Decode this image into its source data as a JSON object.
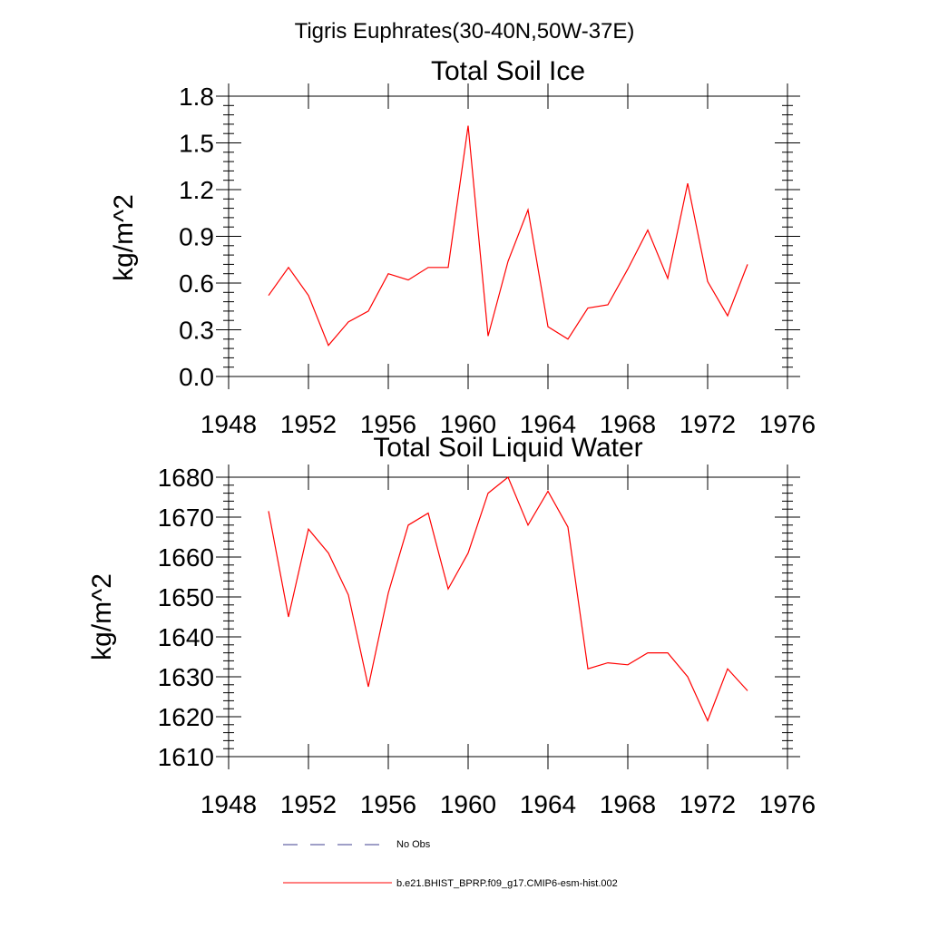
{
  "figure_title": "Tigris Euphrates(30-40N,50W-37E)",
  "colors": {
    "model": "#ff0000",
    "obs": "#3f3f8f",
    "axis": "#000000"
  },
  "legend": {
    "obs_label": "No Obs",
    "model_label": "b.e21.BHIST_BPRP.f09_g17.CMIP6-esm-hist.002"
  },
  "chart_data": [
    {
      "type": "line",
      "title": "Total Soil Ice",
      "xlabel": "",
      "ylabel": "kg/m^2",
      "xlim": [
        1948,
        1976
      ],
      "ylim": [
        0.0,
        1.8
      ],
      "x_ticks": [
        1948,
        1952,
        1956,
        1960,
        1964,
        1968,
        1972,
        1976
      ],
      "y_ticks": [
        "0.0",
        "0.3",
        "0.6",
        "0.9",
        "1.2",
        "1.5",
        "1.8"
      ],
      "grid": false,
      "x": [
        1950,
        1951,
        1952,
        1953,
        1954,
        1955,
        1956,
        1957,
        1958,
        1959,
        1960,
        1961,
        1962,
        1963,
        1964,
        1965,
        1966,
        1967,
        1968,
        1969,
        1970,
        1971,
        1972,
        1973,
        1974
      ],
      "series": [
        {
          "name": "b.e21.BHIST_BPRP.f09_g17.CMIP6-esm-hist.002",
          "values": [
            0.52,
            0.7,
            0.52,
            0.2,
            0.35,
            0.42,
            0.66,
            0.62,
            0.7,
            0.7,
            1.61,
            0.26,
            0.74,
            1.07,
            0.32,
            0.24,
            0.44,
            0.46,
            0.69,
            0.94,
            0.63,
            1.24,
            0.61,
            0.39,
            0.72
          ]
        }
      ]
    },
    {
      "type": "line",
      "title": "Total Soil Liquid Water",
      "xlabel": "",
      "ylabel": "kg/m^2",
      "xlim": [
        1948,
        1976
      ],
      "ylim": [
        1610,
        1680
      ],
      "x_ticks": [
        1948,
        1952,
        1956,
        1960,
        1964,
        1968,
        1972,
        1976
      ],
      "y_ticks": [
        "1610",
        "1620",
        "1630",
        "1640",
        "1650",
        "1660",
        "1670",
        "1680"
      ],
      "grid": false,
      "x": [
        1950,
        1951,
        1952,
        1953,
        1954,
        1955,
        1956,
        1957,
        1958,
        1959,
        1960,
        1961,
        1962,
        1963,
        1964,
        1965,
        1966,
        1967,
        1968,
        1969,
        1970,
        1971,
        1972,
        1973,
        1974
      ],
      "series": [
        {
          "name": "b.e21.BHIST_BPRP.f09_g17.CMIP6-esm-hist.002",
          "values": [
            1671.5,
            1645,
            1667,
            1661,
            1650.5,
            1627.5,
            1651,
            1668,
            1671,
            1652,
            1661,
            1676,
            1680,
            1668,
            1676.5,
            1667.5,
            1632,
            1633.5,
            1633,
            1636,
            1636,
            1630,
            1619,
            1632,
            1626.5
          ]
        }
      ]
    }
  ]
}
